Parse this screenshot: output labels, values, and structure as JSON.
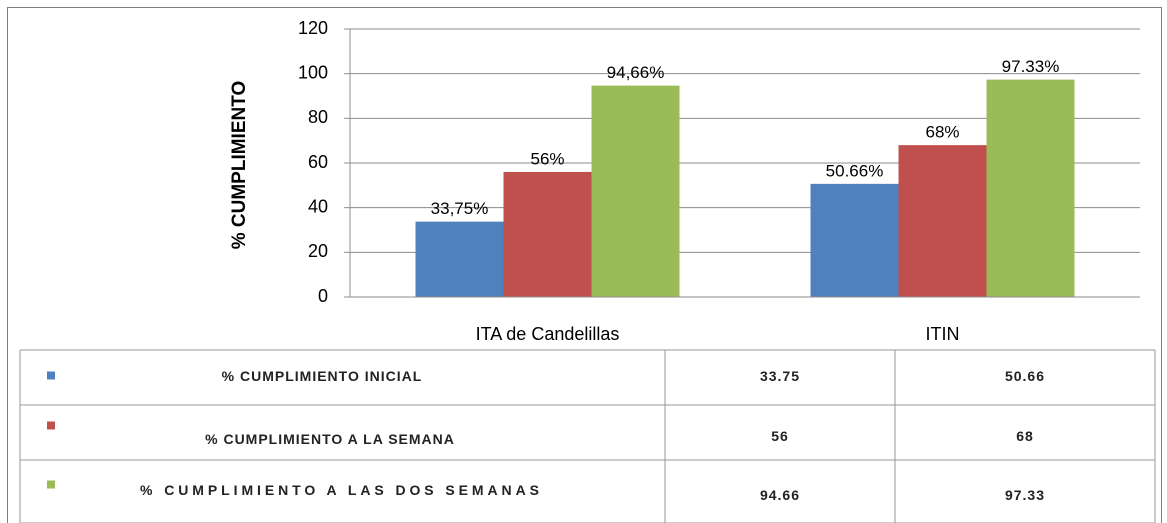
{
  "chart_data": {
    "type": "bar",
    "ylabel": "% CUMPLIMIENTO",
    "categories": [
      "ITA de Candelillas",
      "ITIN"
    ],
    "series": [
      {
        "name": "% CUMPLIMIENTO INICIAL",
        "color": "#4f81bd",
        "values": [
          33.75,
          50.66
        ],
        "value_labels": [
          "33,75%",
          "50.66%"
        ]
      },
      {
        "name": "% CUMPLIMIENTO A LA SEMANA",
        "color": "#c0504d",
        "values": [
          56,
          68
        ],
        "value_labels": [
          "56%",
          "68%"
        ]
      },
      {
        "name": "% CUMPLIMIENTO A LAS DOS SEMANAS",
        "color": "#9bbb59",
        "values": [
          94.66,
          97.33
        ],
        "value_labels": [
          "94,66%",
          "97.33%"
        ]
      }
    ],
    "ylim": [
      0,
      120
    ],
    "yticks": [
      0,
      20,
      40,
      60,
      80,
      100,
      120
    ],
    "grid": true
  }
}
